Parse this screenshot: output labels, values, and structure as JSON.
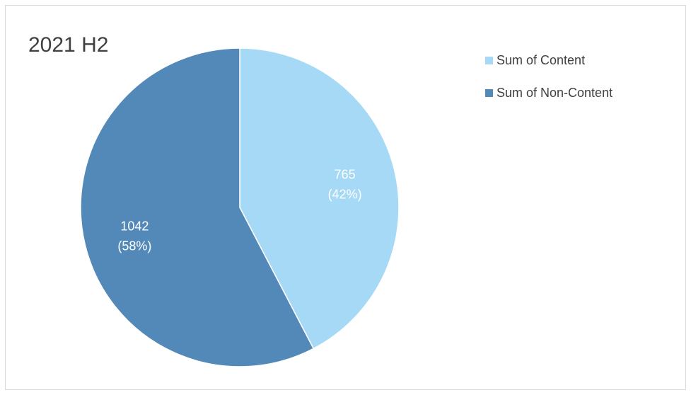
{
  "chart_data": {
    "type": "pie",
    "title": "2021 H2",
    "categories": [
      "Sum of Content",
      "Sum of Non-Content"
    ],
    "values": [
      765,
      1042
    ],
    "percent_labels": [
      "(42%)",
      "(58%)"
    ],
    "colors": [
      "#a5d9f6",
      "#5289b8"
    ],
    "legend_position": "top-right",
    "start_angle_deg": 0,
    "direction": "clockwise"
  }
}
